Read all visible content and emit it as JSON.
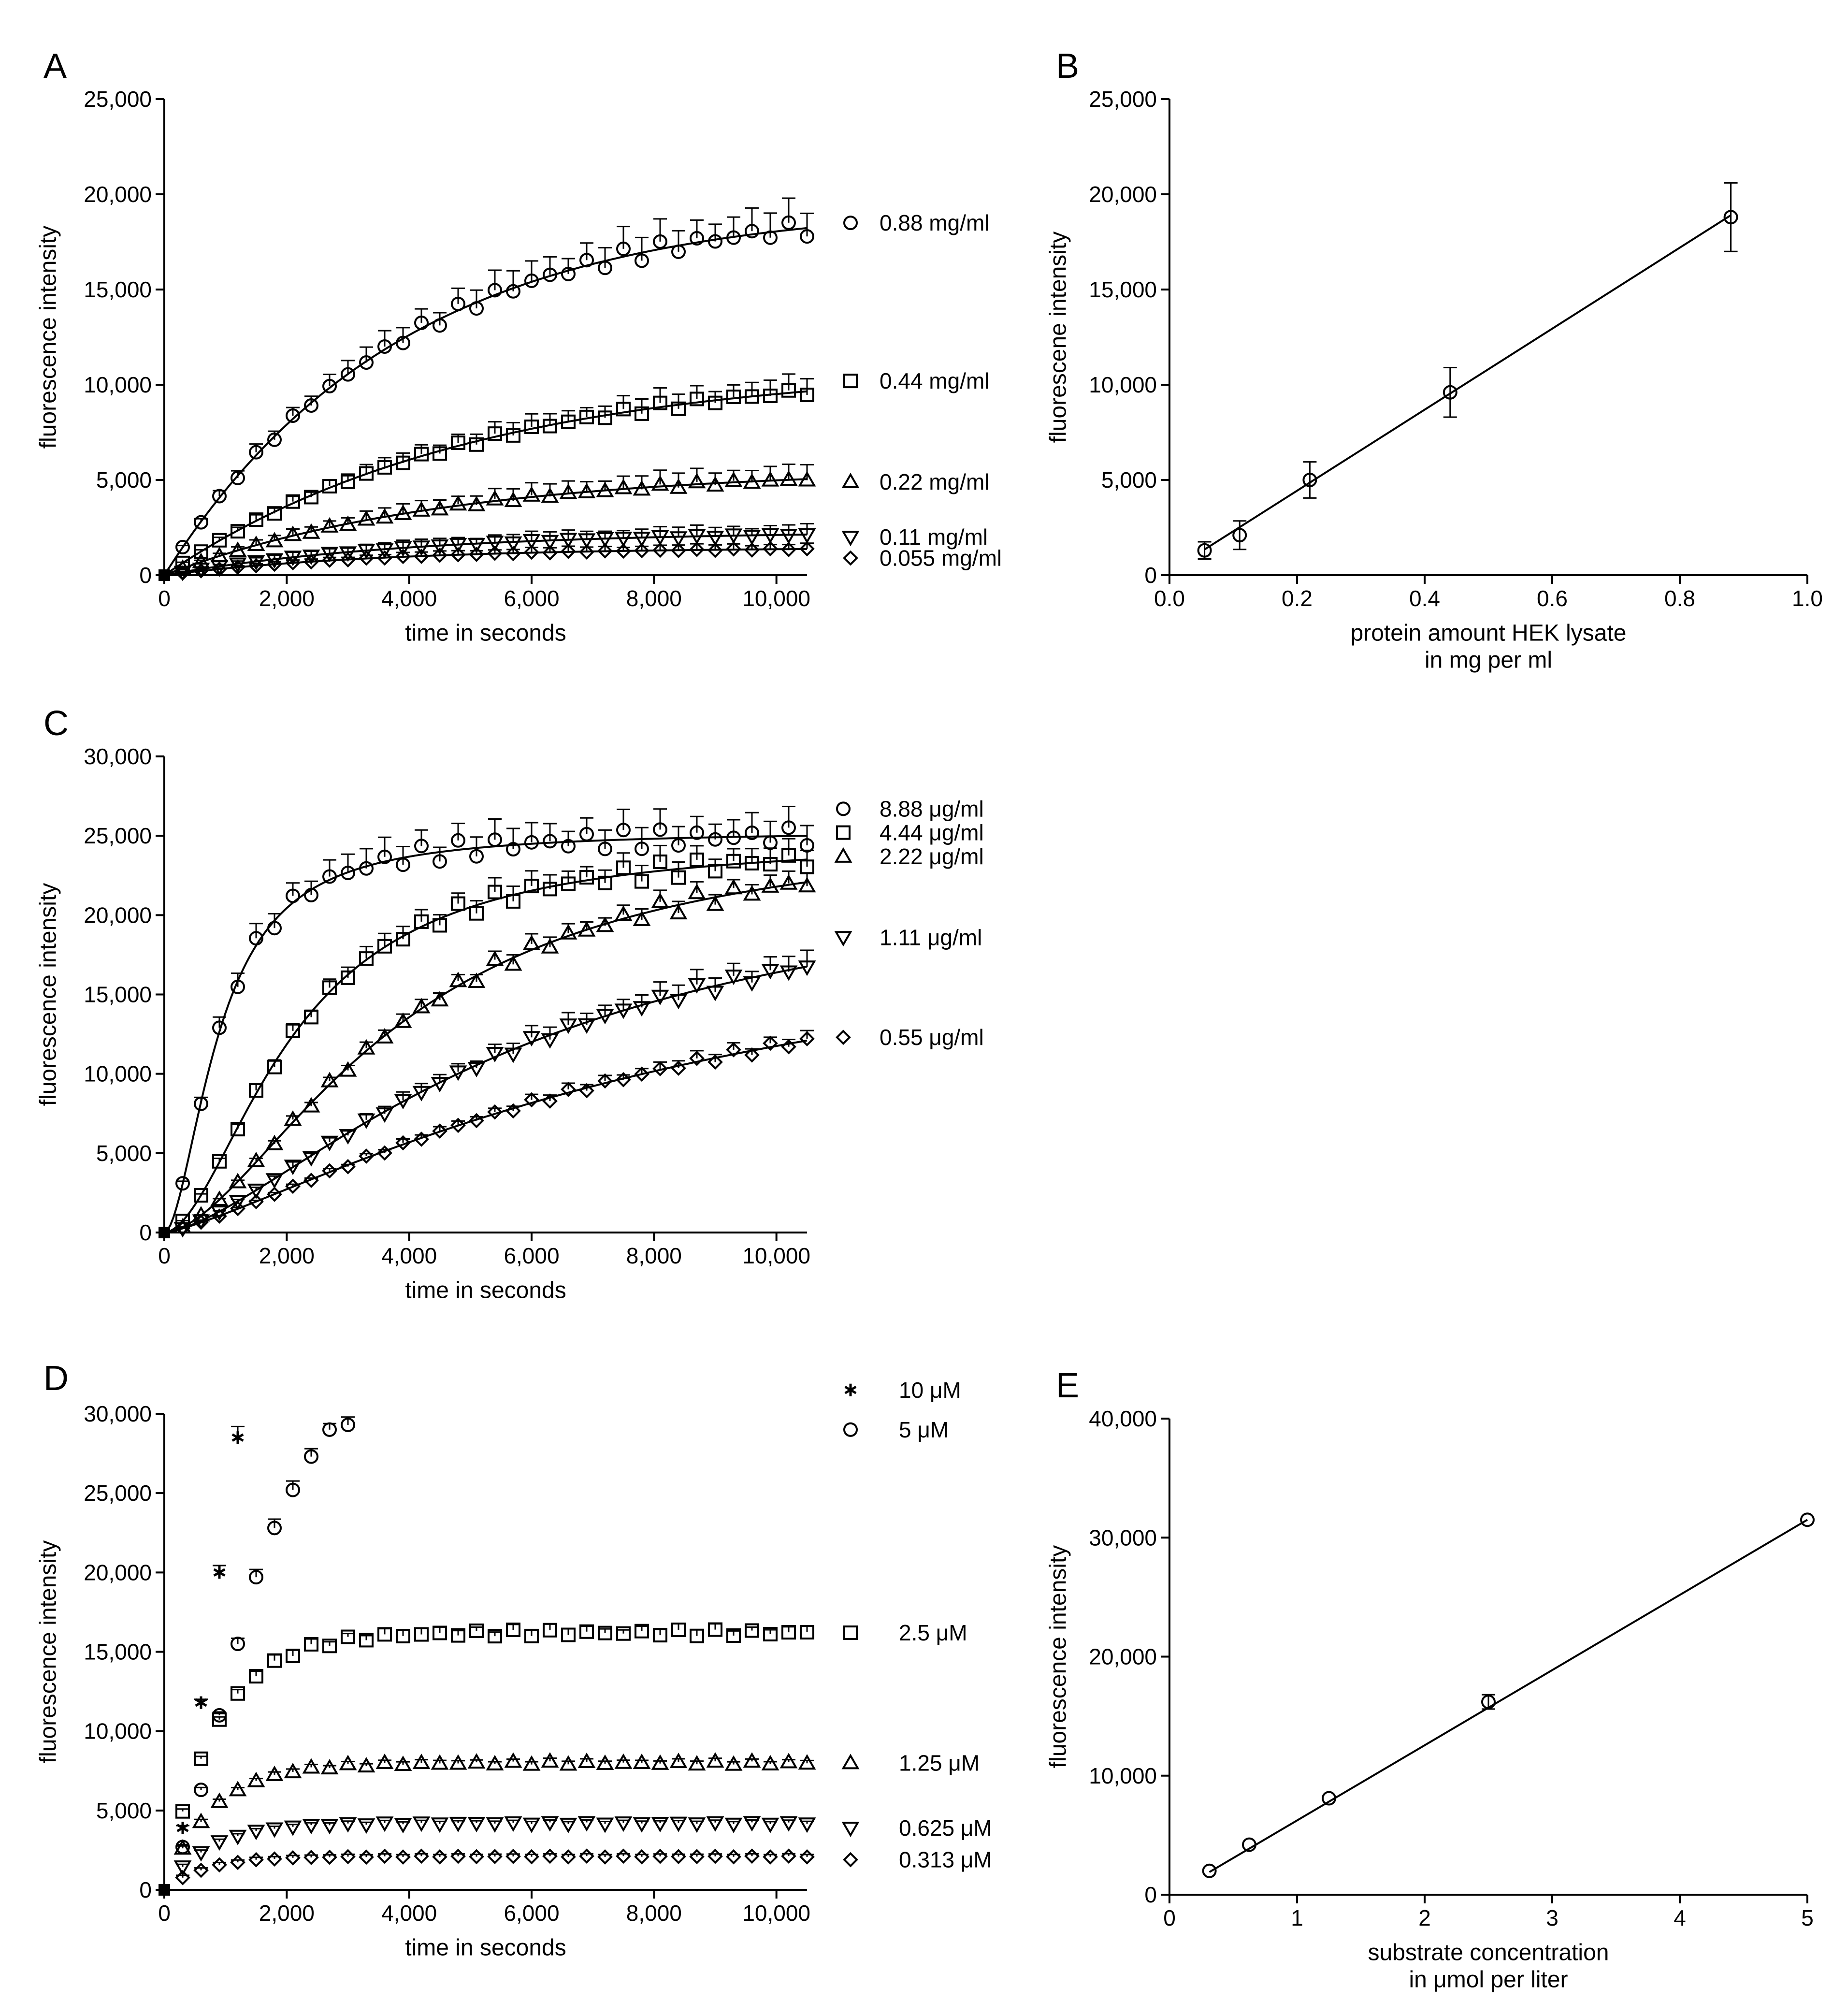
{
  "style": {
    "ink": "#000000",
    "background": "#ffffff"
  },
  "chart_data": [
    {
      "id": "A",
      "type": "scatter",
      "panel_label": "A",
      "xlabel": [
        "time in seconds"
      ],
      "ylabel": "fluorescence intensity",
      "xlim": [
        0,
        10500
      ],
      "ylim": [
        0,
        25000
      ],
      "xticks": [
        0,
        2000,
        4000,
        6000,
        8000,
        10000
      ],
      "xtick_labels": [
        "0",
        "2,000",
        "4,000",
        "6,000",
        "8,000",
        "10,000"
      ],
      "yticks": [
        0,
        5000,
        10000,
        15000,
        20000,
        25000
      ],
      "ytick_labels": [
        "0",
        "5,000",
        "10,000",
        "15,000",
        "20,000",
        "25,000"
      ],
      "series": [
        {
          "name": "0.88 mg/ml",
          "marker": "circle",
          "fit": {
            "model": "exp",
            "ymax": 19500,
            "k": 0.00026
          },
          "label_y": 18500,
          "err_frac": 0.08
        },
        {
          "name": "0.44 mg/ml",
          "marker": "square",
          "fit": {
            "model": "exp",
            "ymax": 11000,
            "k": 0.0002
          },
          "label_y": 10200,
          "err_frac": 0.1
        },
        {
          "name": "0.22 mg/ml",
          "marker": "triangle-up",
          "fit": {
            "model": "exp",
            "ymax": 5600,
            "k": 0.00022
          },
          "label_y": 4900,
          "err_frac": 0.18
        },
        {
          "name": "0.11 mg/ml",
          "marker": "triangle-down",
          "fit": {
            "model": "exp",
            "ymax": 2300,
            "k": 0.00025
          },
          "label_y": 2000,
          "err_frac": 0.3
        },
        {
          "name": "0.055 mg/ml",
          "marker": "diamond",
          "fit": {
            "model": "exp",
            "ymax": 1450,
            "k": 0.00028
          },
          "label_y": 900,
          "err_frac": 0.25
        }
      ]
    },
    {
      "id": "B",
      "type": "scatter",
      "panel_label": "B",
      "xlabel": [
        "protein amount HEK lysate",
        "in mg per ml"
      ],
      "ylabel": "fluorescene intensity",
      "xlim": [
        0,
        1.0
      ],
      "ylim": [
        0,
        25000
      ],
      "xticks": [
        0,
        0.2,
        0.4,
        0.6,
        0.8,
        1.0
      ],
      "xtick_labels": [
        "0.0",
        "0.2",
        "0.4",
        "0.6",
        "0.8",
        "1.0"
      ],
      "yticks": [
        0,
        5000,
        10000,
        15000,
        20000,
        25000
      ],
      "ytick_labels": [
        "0",
        "5,000",
        "10,000",
        "15,000",
        "20,000",
        "25,000"
      ],
      "points": [
        {
          "x": 0.055,
          "y": 1300,
          "err": 450
        },
        {
          "x": 0.11,
          "y": 2100,
          "err": 750
        },
        {
          "x": 0.22,
          "y": 5000,
          "err": 950
        },
        {
          "x": 0.44,
          "y": 9600,
          "err": 1300
        },
        {
          "x": 0.88,
          "y": 18800,
          "err": 1800
        }
      ],
      "fit_line": {
        "x1": 0.055,
        "y1": 1350,
        "x2": 0.88,
        "y2": 18900
      }
    },
    {
      "id": "C",
      "type": "scatter",
      "panel_label": "C",
      "xlabel": [
        "time in seconds"
      ],
      "ylabel": "fluorescence intensity",
      "xlim": [
        0,
        10500
      ],
      "ylim": [
        0,
        30000
      ],
      "xticks": [
        0,
        2000,
        4000,
        6000,
        8000,
        10000
      ],
      "xtick_labels": [
        "0",
        "2,000",
        "4,000",
        "6,000",
        "8,000",
        "10,000"
      ],
      "yticks": [
        0,
        5000,
        10000,
        15000,
        20000,
        25000,
        30000
      ],
      "ytick_labels": [
        "0",
        "5,000",
        "10,000",
        "15,000",
        "20,000",
        "25,000",
        "30,000"
      ],
      "series": [
        {
          "name": "8.88 μg/ml",
          "marker": "circle",
          "fit": {
            "model": "sig",
            "ymax": 25300,
            "t50": 900,
            "n": 1.8
          },
          "label_y": 26700,
          "err_frac": 0.06
        },
        {
          "name": "4.44 μg/ml",
          "marker": "square",
          "fit": {
            "model": "sig",
            "ymax": 24800,
            "t50": 2100,
            "n": 1.8
          },
          "label_y": 25200,
          "err_frac": 0.05
        },
        {
          "name": "2.22 μg/ml",
          "marker": "triangle-up",
          "fit": {
            "model": "sig",
            "ymax": 26000,
            "t50": 3800,
            "n": 1.7
          },
          "label_y": 23700,
          "err_frac": 0.04
        },
        {
          "name": "1.11 μg/ml",
          "marker": "triangle-down",
          "fit": {
            "model": "sig",
            "ymax": 24000,
            "t50": 6000,
            "n": 1.5
          },
          "label_y": 18600,
          "err_frac": 0.07
        },
        {
          "name": "0.55 μg/ml",
          "marker": "diamond",
          "fit": {
            "model": "sig",
            "ymax": 22000,
            "t50": 9000,
            "n": 1.3
          },
          "label_y": 12300,
          "err_frac": 0.05
        }
      ]
    },
    {
      "id": "D",
      "type": "scatter",
      "panel_label": "D",
      "xlabel": [
        "time in seconds"
      ],
      "ylabel": "fluorescence intensity",
      "xlim": [
        0,
        10500
      ],
      "ylim": [
        0,
        30000
      ],
      "xticks": [
        0,
        2000,
        4000,
        6000,
        8000,
        10000
      ],
      "xtick_labels": [
        "0",
        "2,000",
        "4,000",
        "6,000",
        "8,000",
        "10,000"
      ],
      "yticks": [
        0,
        5000,
        10000,
        15000,
        20000,
        25000,
        30000
      ],
      "ytick_labels": [
        "0",
        "5,000",
        "10,000",
        "15,000",
        "20,000",
        "25,000",
        "30,000"
      ],
      "series": [
        {
          "name": "10 μM",
          "marker": "star",
          "label_y": 31500,
          "points": [
            [
              300,
              3900
            ],
            [
              600,
              11800
            ],
            [
              900,
              20000
            ],
            [
              1200,
              28500
            ]
          ]
        },
        {
          "name": "5 μM",
          "marker": "circle",
          "label_y": 29000,
          "points": [
            [
              300,
              2700
            ],
            [
              600,
              6300
            ],
            [
              900,
              11000
            ],
            [
              1200,
              15500
            ],
            [
              1500,
              19700
            ],
            [
              1800,
              22800
            ],
            [
              2100,
              25200
            ],
            [
              2400,
              27300
            ],
            [
              2700,
              29000
            ],
            [
              3000,
              29300
            ]
          ]
        },
        {
          "name": "2.5 μM",
          "marker": "square",
          "plateau": 16200,
          "rise_k": 0.0012,
          "label_y": 16200
        },
        {
          "name": "1.25 μM",
          "marker": "triangle-up",
          "plateau": 8000,
          "rise_k": 0.0013,
          "label_y": 8000
        },
        {
          "name": "0.625 μM",
          "marker": "triangle-down",
          "plateau": 4200,
          "rise_k": 0.0014,
          "label_y": 3900
        },
        {
          "name": "0.313 μM",
          "marker": "diamond",
          "plateau": 2100,
          "rise_k": 0.0015,
          "label_y": 1900
        }
      ]
    },
    {
      "id": "E",
      "type": "scatter",
      "panel_label": "E",
      "xlabel": [
        "substrate concentration",
        "in μmol per liter"
      ],
      "ylabel": "fluorescence intensity",
      "xlim": [
        0,
        5
      ],
      "ylim": [
        0,
        40000
      ],
      "xticks": [
        0,
        1,
        2,
        3,
        4,
        5
      ],
      "xtick_labels": [
        "0",
        "1",
        "2",
        "3",
        "4",
        "5"
      ],
      "yticks": [
        0,
        10000,
        20000,
        30000,
        40000
      ],
      "ytick_labels": [
        "0",
        "10,000",
        "20,000",
        "30,000",
        "40,000"
      ],
      "points": [
        {
          "x": 0.313,
          "y": 2000,
          "err": 0
        },
        {
          "x": 0.625,
          "y": 4200,
          "err": 0
        },
        {
          "x": 1.25,
          "y": 8100,
          "err": 0
        },
        {
          "x": 2.5,
          "y": 16200,
          "err": 600
        },
        {
          "x": 5,
          "y": 31500,
          "err": 0
        }
      ],
      "fit_line": {
        "x1": 0.313,
        "y1": 1900,
        "x2": 5,
        "y2": 31500
      }
    }
  ]
}
